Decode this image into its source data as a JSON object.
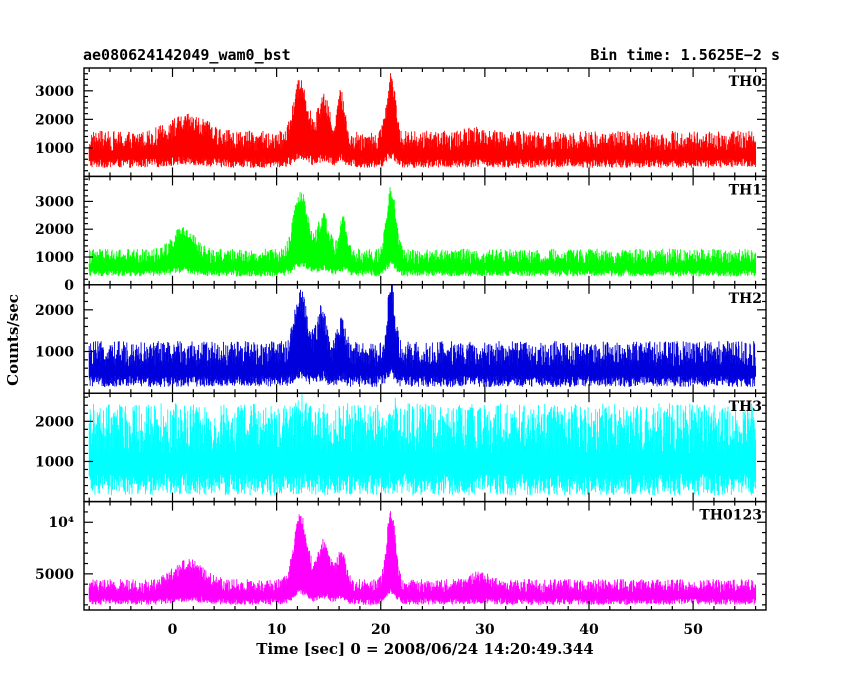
{
  "header": {
    "left_title": "ae080624142049_wam0_bst",
    "right_title": "Bin time: 1.5625E−2 s"
  },
  "chart_data": {
    "type": "line",
    "xlabel": "Time [sec] 0 = 2008/06/24 14:20:49.344",
    "ylabel": "Counts/sec",
    "xlim": [
      -8.5,
      57
    ],
    "x_tick_labels": [
      "0",
      "10",
      "20",
      "30",
      "40",
      "50"
    ],
    "x_ticks": [
      0,
      10,
      20,
      30,
      40,
      50
    ],
    "x_range_data": [
      -8,
      56
    ],
    "panels": [
      {
        "label": "TH0",
        "color": "#ff0000",
        "ylim": [
          0,
          3800
        ],
        "y_ticks": [
          1000,
          2000,
          3000
        ],
        "y_tick_labels": [
          "1000",
          "2000",
          "3000"
        ],
        "baseline": 300,
        "noise": 1300,
        "peaks": [
          {
            "t": 1.5,
            "amp": 600,
            "w": 2.5
          },
          {
            "t": 12.3,
            "amp": 1900,
            "w": 0.9
          },
          {
            "t": 14.5,
            "amp": 1300,
            "w": 0.8
          },
          {
            "t": 16.2,
            "amp": 1500,
            "w": 0.5
          },
          {
            "t": 21.0,
            "amp": 2100,
            "w": 0.6
          },
          {
            "t": 29.5,
            "amp": 200,
            "w": 1.5
          }
        ]
      },
      {
        "label": "TH1",
        "color": "#00ff00",
        "ylim": [
          0,
          3900
        ],
        "y_ticks": [
          0,
          1000,
          2000,
          3000
        ],
        "y_tick_labels": [
          "0",
          "1000",
          "2000",
          "3000"
        ],
        "baseline": 300,
        "noise": 1000,
        "peaks": [
          {
            "t": 1.0,
            "amp": 800,
            "w": 1.5
          },
          {
            "t": 12.3,
            "amp": 2200,
            "w": 0.9
          },
          {
            "t": 14.5,
            "amp": 1300,
            "w": 0.8
          },
          {
            "t": 16.4,
            "amp": 1200,
            "w": 0.5
          },
          {
            "t": 21.0,
            "amp": 2300,
            "w": 0.6
          }
        ]
      },
      {
        "label": "TH2",
        "color": "#0000dd",
        "ylim": [
          0,
          2600
        ],
        "y_ticks": [
          1000,
          2000
        ],
        "y_tick_labels": [
          "1000",
          "2000"
        ],
        "baseline": 150,
        "noise": 1100,
        "peaks": [
          {
            "t": 12.3,
            "amp": 1300,
            "w": 0.8
          },
          {
            "t": 14.3,
            "amp": 900,
            "w": 0.6
          },
          {
            "t": 16.2,
            "amp": 700,
            "w": 0.5
          },
          {
            "t": 21.0,
            "amp": 1500,
            "w": 0.5
          }
        ]
      },
      {
        "label": "TH3",
        "color": "#00ffff",
        "ylim": [
          0,
          2700
        ],
        "y_ticks": [
          1000,
          2000
        ],
        "y_tick_labels": [
          "1000",
          "2000"
        ],
        "baseline": 150,
        "noise": 2300,
        "peaks": [
          {
            "t": 12.3,
            "amp": 300,
            "w": 0.5
          },
          {
            "t": 21.0,
            "amp": 300,
            "w": 0.5
          }
        ]
      },
      {
        "label": "TH0123",
        "color": "#ff00ff",
        "ylim": [
          1500,
          12000
        ],
        "y_ticks": [
          5000,
          10000
        ],
        "y_tick_labels": [
          "5000",
          "10⁴"
        ],
        "baseline": 2000,
        "noise": 2500,
        "peaks": [
          {
            "t": 1.5,
            "amp": 2000,
            "w": 2.0
          },
          {
            "t": 12.3,
            "amp": 6500,
            "w": 0.9
          },
          {
            "t": 14.5,
            "amp": 4000,
            "w": 0.8
          },
          {
            "t": 16.2,
            "amp": 3000,
            "w": 0.6
          },
          {
            "t": 21.0,
            "amp": 7000,
            "w": 0.6
          },
          {
            "t": 29.5,
            "amp": 800,
            "w": 1.2
          }
        ]
      }
    ]
  }
}
